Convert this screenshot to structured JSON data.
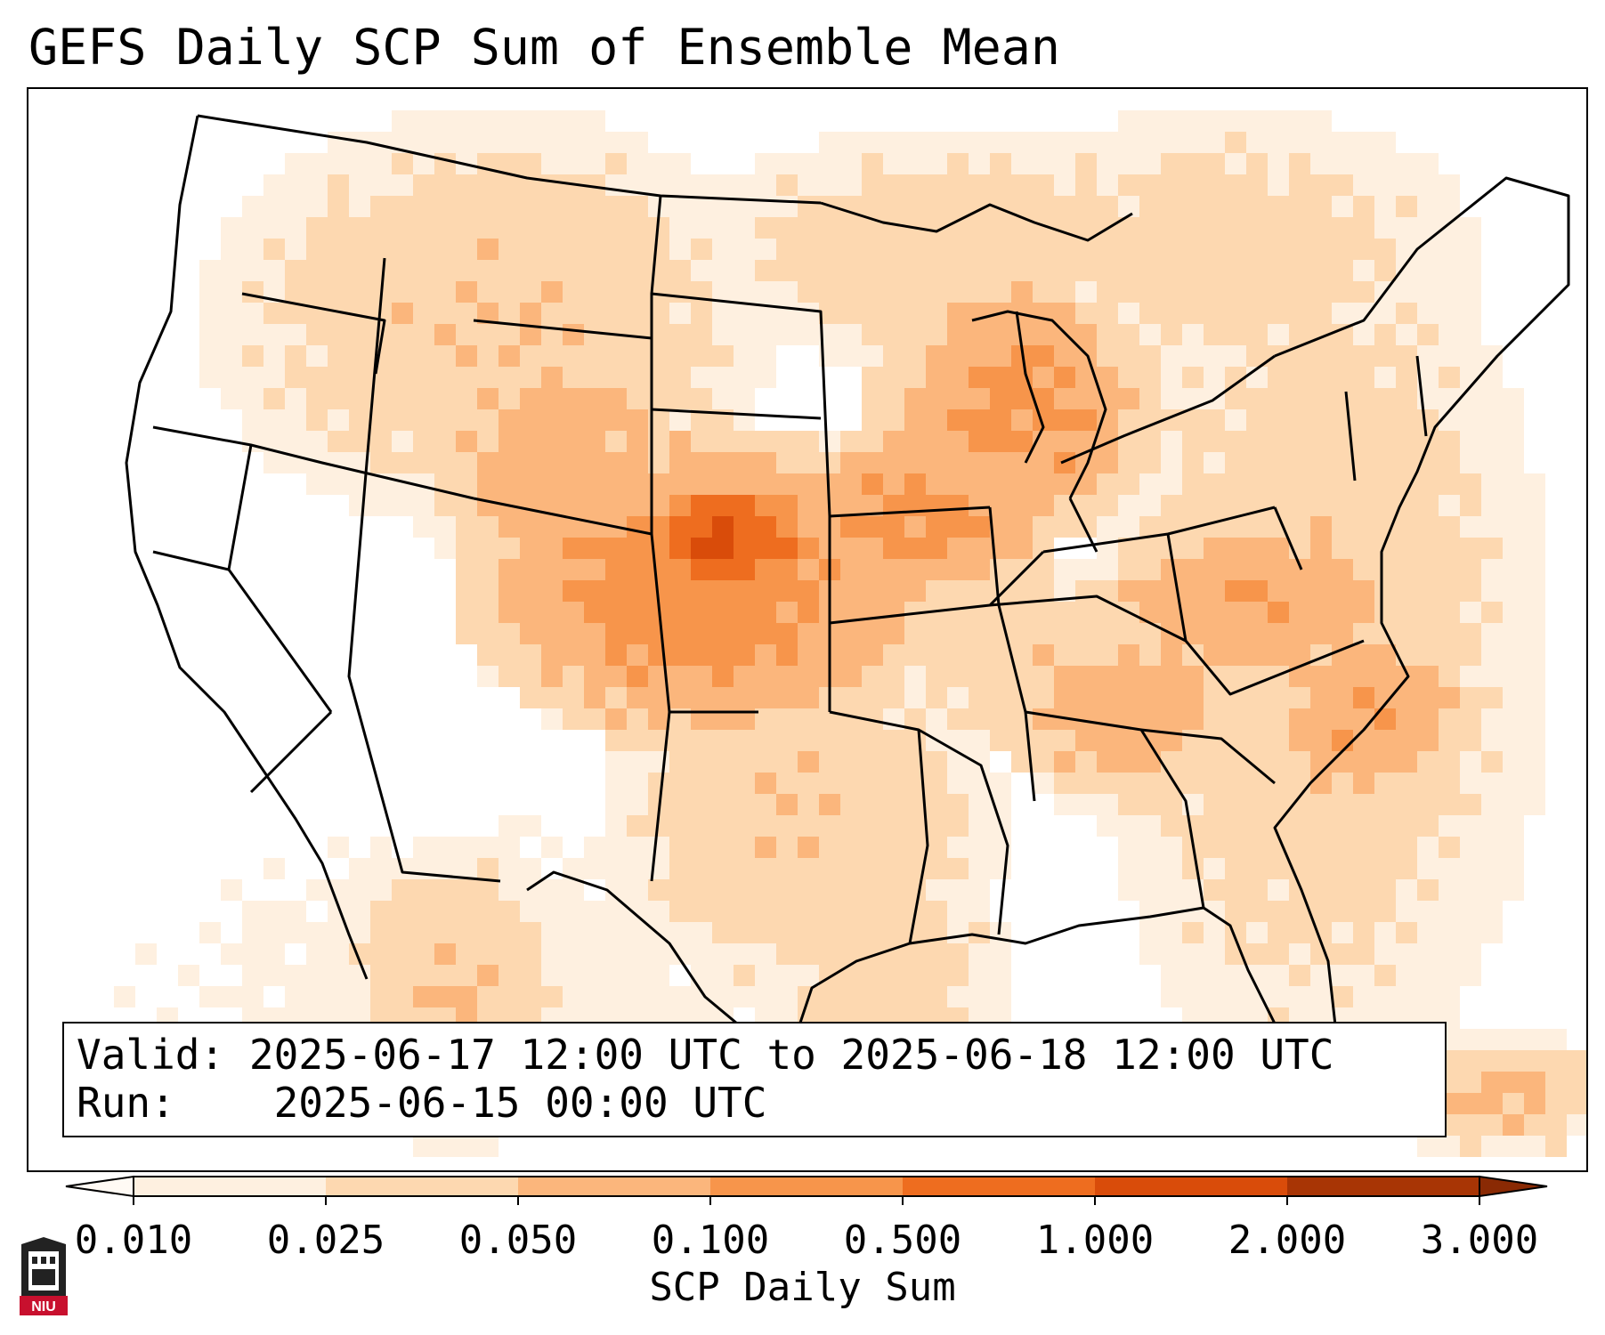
{
  "title": "GEFS Daily SCP Sum of Ensemble Mean",
  "valid_label": "Valid:",
  "valid_value": "2025-06-17 12:00 UTC to 2025-06-18 12:00 UTC",
  "run_label": "Run:",
  "run_value": "2025-06-15 00:00 UTC",
  "colorbar": {
    "ticks": [
      "0.010",
      "0.025",
      "0.050",
      "0.100",
      "0.500",
      "1.000",
      "2.000",
      "3.000"
    ],
    "colors": [
      "#fef0e0",
      "#fdd8b0",
      "#fbb67c",
      "#f7954b",
      "#ee6d1f",
      "#d94c0a",
      "#a83505"
    ],
    "extend": "both",
    "label": "SCP Daily Sum"
  },
  "map": {
    "region": "Contiguous United States",
    "max_value_area": "Kansas"
  },
  "logo": {
    "text": "NIU",
    "color": "#c8102e"
  }
}
